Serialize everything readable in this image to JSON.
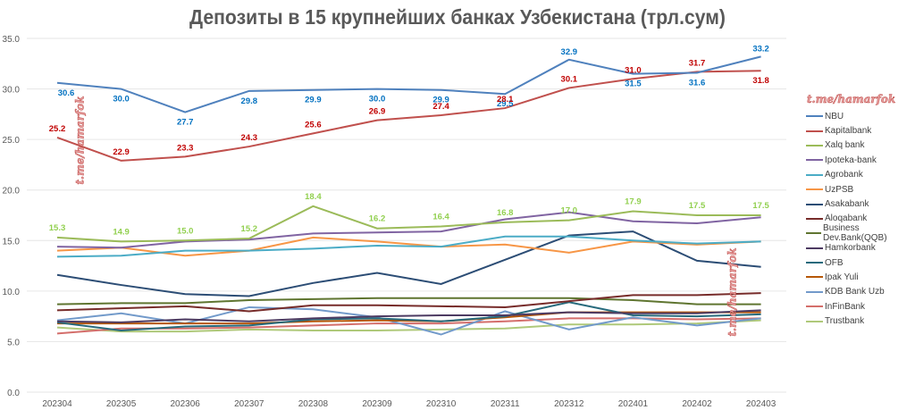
{
  "title": "Депозиты в 15 крупнейших банках Узбекистана (трл.сум)",
  "watermark": "t.me/hamarfok",
  "chart_data": {
    "type": "line",
    "title": "Депозиты в 15 крупнейших банках Узбекистана (трл.сум)",
    "xlabel": "",
    "ylabel": "",
    "ylim": [
      0,
      35
    ],
    "yticks": [
      "0.0",
      "5.0",
      "10.0",
      "15.0",
      "20.0",
      "25.0",
      "30.0",
      "35.0"
    ],
    "grid": true,
    "legend": "right",
    "categories": [
      "202304",
      "202305",
      "202306",
      "202307",
      "202308",
      "202309",
      "202310",
      "202311",
      "202312",
      "202401",
      "202402",
      "202403"
    ],
    "series": [
      {
        "name": "NBU",
        "color": "#4f81bd",
        "labeled": true,
        "label_color": "#0070c0",
        "values": [
          30.6,
          30.0,
          27.7,
          29.8,
          29.9,
          30.0,
          29.9,
          29.5,
          32.9,
          31.5,
          31.6,
          33.2
        ]
      },
      {
        "name": "Kapitalbank",
        "color": "#c0504d",
        "labeled": true,
        "label_color": "#c00000",
        "values": [
          25.2,
          22.9,
          23.3,
          24.3,
          25.6,
          26.9,
          27.4,
          28.1,
          30.1,
          31.0,
          31.7,
          31.8
        ]
      },
      {
        "name": "Xalq bank",
        "color": "#9bbb59",
        "labeled": true,
        "label_color": "#92d050",
        "values": [
          15.3,
          14.9,
          15.0,
          15.2,
          18.4,
          16.2,
          16.4,
          16.8,
          17.0,
          17.9,
          17.5,
          17.5
        ]
      },
      {
        "name": "Ipoteka-bank",
        "color": "#8064a2",
        "values": [
          14.4,
          14.3,
          14.9,
          15.1,
          15.7,
          15.8,
          15.9,
          17.1,
          17.8,
          16.9,
          16.7,
          17.3
        ]
      },
      {
        "name": "Agrobank",
        "color": "#4bacc6",
        "values": [
          13.4,
          13.5,
          14.0,
          14.0,
          14.2,
          14.5,
          14.4,
          15.4,
          15.4,
          15.0,
          14.7,
          14.9
        ]
      },
      {
        "name": "UzPSB",
        "color": "#f79646",
        "values": [
          14.0,
          14.3,
          13.5,
          14.0,
          15.3,
          14.9,
          14.4,
          14.6,
          13.8,
          14.9,
          14.6,
          14.9
        ]
      },
      {
        "name": "Asakabank",
        "color": "#2c4d75",
        "values": [
          11.6,
          10.6,
          9.7,
          9.5,
          10.8,
          11.8,
          10.7,
          13.1,
          15.5,
          15.9,
          13.0,
          12.4
        ]
      },
      {
        "name": "Aloqabank",
        "color": "#772c2a",
        "values": [
          8.1,
          8.3,
          8.5,
          8.0,
          8.6,
          8.6,
          8.5,
          8.4,
          9.0,
          9.6,
          9.6,
          9.8
        ]
      },
      {
        "name": "Business Dev.Bank(QQB)",
        "color": "#5f7530",
        "values": [
          8.7,
          8.8,
          8.8,
          9.1,
          9.2,
          9.3,
          9.3,
          9.3,
          9.3,
          9.1,
          8.7,
          8.7
        ]
      },
      {
        "name": "Hamkorbank",
        "color": "#4d3b62",
        "values": [
          7.0,
          6.9,
          7.2,
          7.0,
          7.3,
          7.5,
          7.6,
          7.6,
          7.9,
          7.8,
          7.8,
          8.1
        ]
      },
      {
        "name": "OFB",
        "color": "#276a7c",
        "values": [
          6.9,
          6.1,
          6.5,
          6.6,
          7.2,
          7.3,
          7.0,
          7.5,
          8.9,
          7.6,
          7.5,
          7.7
        ]
      },
      {
        "name": "Ipak Yuli",
        "color": "#b65708",
        "values": [
          6.8,
          6.8,
          6.8,
          6.8,
          7.0,
          7.1,
          7.0,
          7.4,
          7.9,
          7.9,
          7.9,
          7.9
        ]
      },
      {
        "name": "KDB Bank Uzb",
        "color": "#729aca",
        "values": [
          7.1,
          7.8,
          6.8,
          8.4,
          8.2,
          7.4,
          5.7,
          8.0,
          6.2,
          7.4,
          6.6,
          7.3
        ]
      },
      {
        "name": "InFinBank",
        "color": "#d46e6b",
        "values": [
          5.8,
          6.3,
          6.3,
          6.4,
          6.6,
          6.8,
          6.8,
          7.0,
          7.3,
          7.3,
          7.2,
          7.3
        ]
      },
      {
        "name": "Trustbank",
        "color": "#afc97a",
        "values": [
          6.4,
          6.0,
          6.0,
          6.2,
          6.1,
          6.1,
          6.2,
          6.3,
          6.7,
          6.7,
          6.8,
          7.1
        ]
      }
    ]
  }
}
